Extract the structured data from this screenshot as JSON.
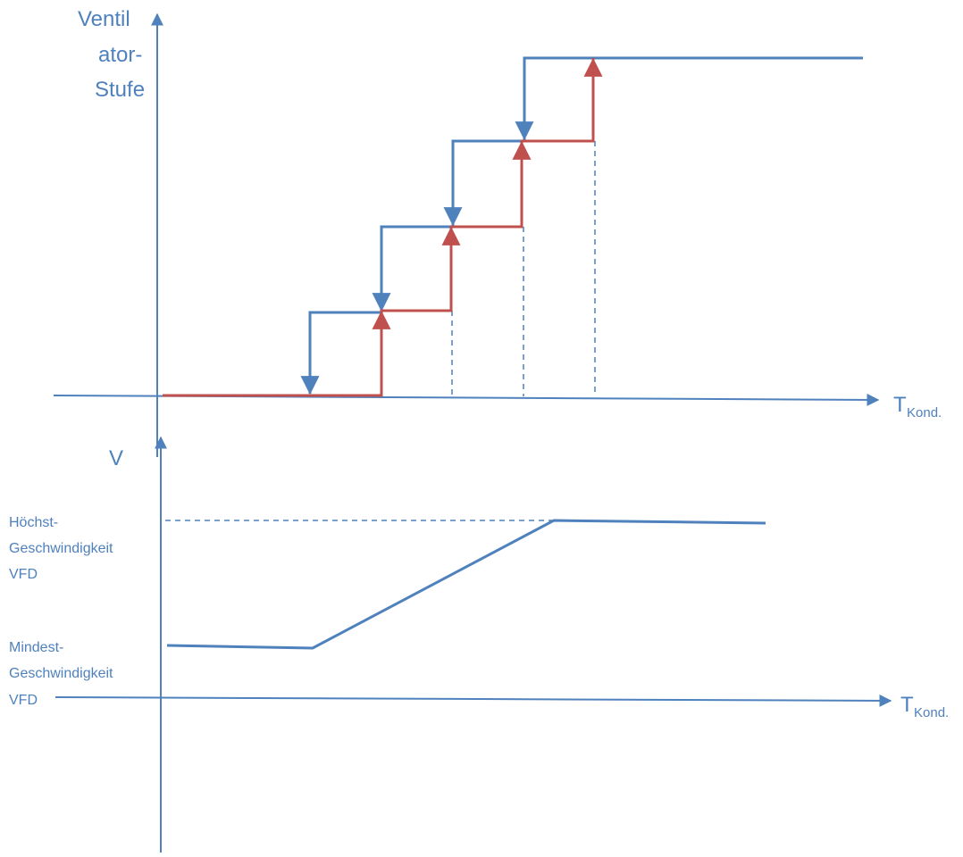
{
  "colors": {
    "axis": "#4f81bd",
    "rising": "#c0504d",
    "falling": "#4f81bd",
    "speed": "#4f81bd",
    "text": "#4f81bd"
  },
  "top_diagram": {
    "y_axis_label_lines": [
      "Ventil",
      "ator-",
      "Stufe"
    ],
    "x_axis_label_main": "T",
    "x_axis_label_sub": "Kond.",
    "stage_count": 4
  },
  "bottom_diagram": {
    "y_axis_label": "V",
    "max_label_lines": [
      "Höchst-",
      "Geschwindigkeit",
      "VFD"
    ],
    "min_label_lines": [
      "Mindest-",
      "Geschwindigkeit",
      "VFD"
    ],
    "x_axis_label_main": "T",
    "x_axis_label_sub": "Kond."
  }
}
